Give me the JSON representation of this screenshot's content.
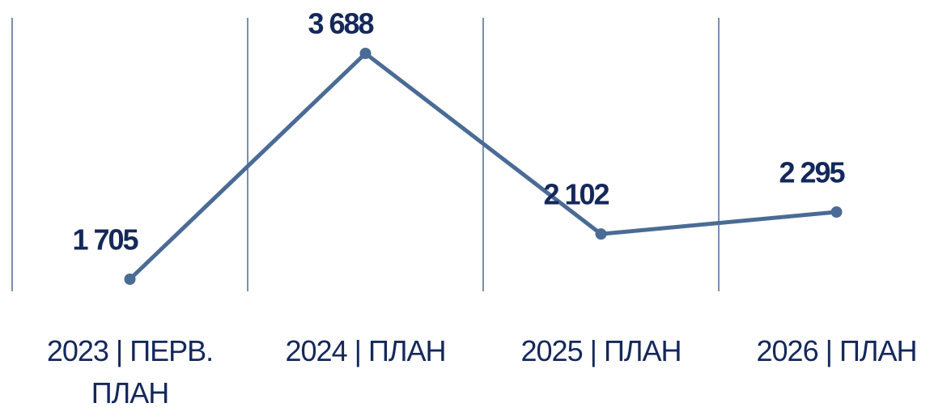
{
  "chart_data": {
    "type": "line",
    "categories": [
      "2023 | ПЕРВ. ПЛАН",
      "2024 | ПЛАН",
      "2025 | ПЛАН",
      "2026 | ПЛАН"
    ],
    "series": [
      {
        "color": "#4a6b95",
        "values": [
          1705,
          3688,
          2102,
          2295
        ],
        "value_labels": [
          "1 705",
          "3 688",
          "2 102",
          "2 295"
        ]
      }
    ]
  }
}
